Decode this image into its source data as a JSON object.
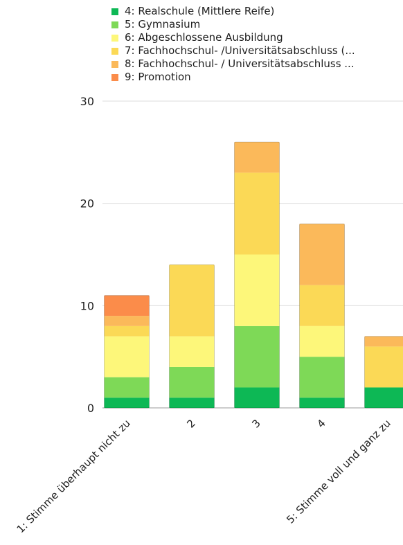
{
  "chart_data": {
    "type": "bar",
    "stacked": true,
    "categories": [
      "1: Stimme überhaupt nicht zu",
      "2",
      "3",
      "4",
      "5: Stimme voll und ganz zu"
    ],
    "series": [
      {
        "name": "4: Realschule (Mittlere Reife)",
        "color": "#0db855",
        "values": [
          1,
          1,
          2,
          1,
          2
        ]
      },
      {
        "name": "5: Gymnasium",
        "color": "#7ed957",
        "values": [
          2,
          3,
          6,
          4,
          0
        ]
      },
      {
        "name": "6: Abgeschlossene Ausbildung",
        "color": "#fdf77a",
        "values": [
          4,
          3,
          7,
          3,
          0
        ]
      },
      {
        "name": "7: Fachhochschul- /Universitätsabschluss (...",
        "color": "#fbd956",
        "values": [
          1,
          7,
          8,
          4,
          4
        ]
      },
      {
        "name": "8: Fachhochschul- / Universitätsabschluss ...",
        "color": "#fbb95a",
        "values": [
          1,
          0,
          3,
          6,
          1
        ]
      },
      {
        "name": "9: Promotion",
        "color": "#fb8c4a",
        "values": [
          2,
          0,
          0,
          0,
          0
        ]
      }
    ],
    "y_ticks": [
      0,
      10,
      20,
      30
    ],
    "ylim": [
      0,
      30
    ],
    "grid": true,
    "legend_position": "top"
  }
}
